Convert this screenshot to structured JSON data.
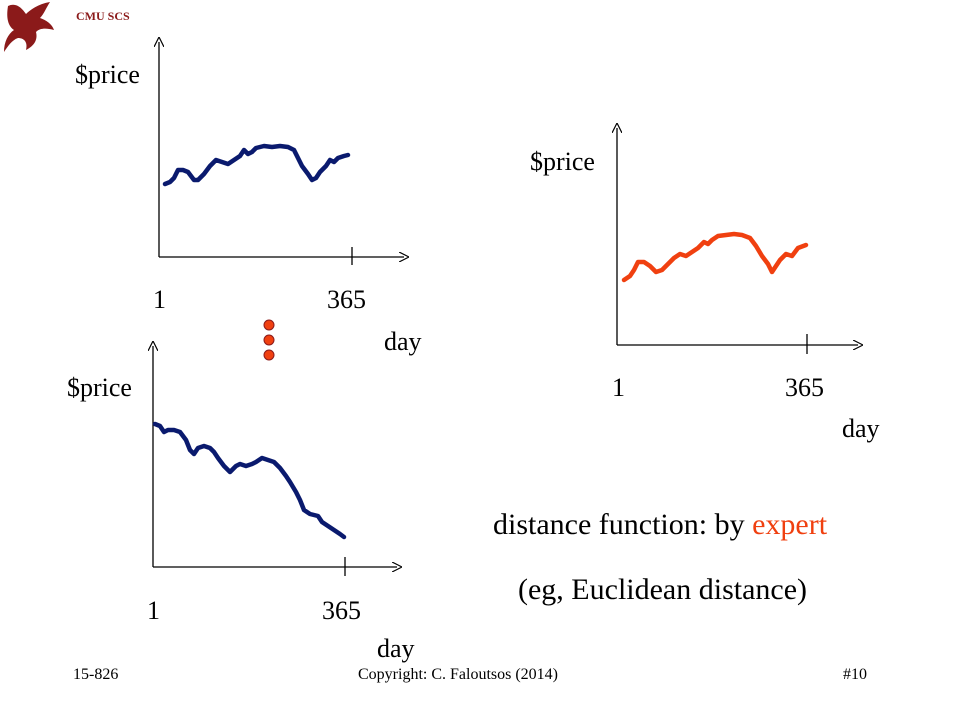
{
  "header": {
    "school": "CMU SCS",
    "logo_icon": "griffin-logo-icon"
  },
  "charts": [
    {
      "ylabel": "$price",
      "xlabel": "day",
      "x_start": "1",
      "x_end": "365",
      "color": "#0a1a6e"
    },
    {
      "ylabel": "$price",
      "xlabel": "day",
      "x_start": "1",
      "x_end": "365",
      "color": "#f04010"
    },
    {
      "ylabel": "$price",
      "xlabel": "day",
      "x_start": "1",
      "x_end": "365",
      "color": "#0a1a6e"
    }
  ],
  "ellipsis": {
    "icon": "vertical-ellipsis-dots-icon",
    "color": "#f04010"
  },
  "caption": {
    "line1_prefix": "distance function: by ",
    "line1_highlight": "expert",
    "line2": "(eg, Euclidean distance)",
    "highlight_color": "#f04010"
  },
  "footer": {
    "course": "15-826",
    "copyright": "Copyright: C. Faloutsos (2014)",
    "slide_number": "#10"
  }
}
